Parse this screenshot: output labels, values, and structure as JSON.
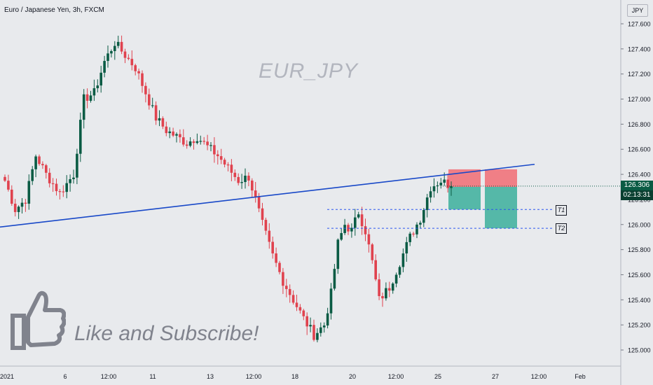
{
  "header": {
    "title": "Euro / Japanese Yen, 3h, FXCM",
    "currency": "JPY"
  },
  "watermark": "EUR_JPY",
  "promo": {
    "text": "Like and Subscribe!",
    "icon": "thumbs-up-icon"
  },
  "price_tag": {
    "price": "126.306",
    "countdown": "02:13:31"
  },
  "targets": {
    "t1": "T1",
    "t2": "T2"
  },
  "colors": {
    "up": "#0a5b44",
    "down": "#e0424e",
    "trendline": "#1848c8",
    "target_line": "#2a55ee",
    "stop_zone": "#f07f86",
    "profit_zone": "#55b8a8",
    "background": "#e8eaed"
  },
  "chart_data": {
    "type": "candlestick",
    "title": "Euro / Japanese Yen, 3h, FXCM",
    "ylim": [
      124.9,
      127.7
    ],
    "y_ticks": [
      "125.000",
      "125.200",
      "125.400",
      "125.600",
      "125.800",
      "126.000",
      "126.200",
      "126.400",
      "126.600",
      "126.800",
      "127.000",
      "127.200",
      "127.400",
      "127.600"
    ],
    "x_ticks": [
      "2021",
      "6",
      "12:00",
      "11",
      "13",
      "12:00",
      "18",
      "20",
      "12:00",
      "25",
      "27",
      "12:00",
      "Feb"
    ],
    "last_price": 126.306,
    "trendline": {
      "from": {
        "bar": 0,
        "price": 125.98
      },
      "to": {
        "bar": 152,
        "price": 126.48
      }
    },
    "targets": [
      {
        "label": "T1",
        "price": 126.12
      },
      {
        "label": "T2",
        "price": 125.97
      }
    ],
    "positions": [
      {
        "entry": 126.3,
        "stop": 126.44,
        "target": 126.12
      },
      {
        "entry": 126.3,
        "stop": 126.44,
        "target": 125.97
      }
    ],
    "waypoints": [
      [
        0,
        126.35
      ],
      [
        3,
        126.12
      ],
      [
        6,
        126.2
      ],
      [
        9,
        126.55
      ],
      [
        12,
        126.4
      ],
      [
        16,
        126.25
      ],
      [
        20,
        126.4
      ],
      [
        23,
        127.0
      ],
      [
        26,
        127.05
      ],
      [
        29,
        127.3
      ],
      [
        32,
        127.45
      ],
      [
        35,
        127.35
      ],
      [
        38,
        127.25
      ],
      [
        41,
        127.05
      ],
      [
        44,
        126.85
      ],
      [
        47,
        126.75
      ],
      [
        50,
        126.7
      ],
      [
        53,
        126.65
      ],
      [
        56,
        126.7
      ],
      [
        59,
        126.62
      ],
      [
        62,
        126.55
      ],
      [
        65,
        126.45
      ],
      [
        68,
        126.35
      ],
      [
        71,
        126.38
      ],
      [
        73,
        126.2
      ],
      [
        75,
        126.0
      ],
      [
        78,
        125.75
      ],
      [
        81,
        125.55
      ],
      [
        84,
        125.4
      ],
      [
        87,
        125.25
      ],
      [
        90,
        125.12
      ],
      [
        93,
        125.2
      ],
      [
        95,
        125.45
      ],
      [
        97,
        125.85
      ],
      [
        99,
        126.0
      ],
      [
        101,
        125.95
      ],
      [
        103,
        126.1
      ],
      [
        105,
        125.95
      ],
      [
        107,
        125.7
      ],
      [
        109,
        125.4
      ],
      [
        112,
        125.5
      ],
      [
        115,
        125.7
      ],
      [
        118,
        125.9
      ],
      [
        121,
        126.05
      ],
      [
        124,
        126.3
      ],
      [
        127,
        126.35
      ],
      [
        129,
        126.32
      ],
      [
        130,
        126.306
      ]
    ]
  }
}
